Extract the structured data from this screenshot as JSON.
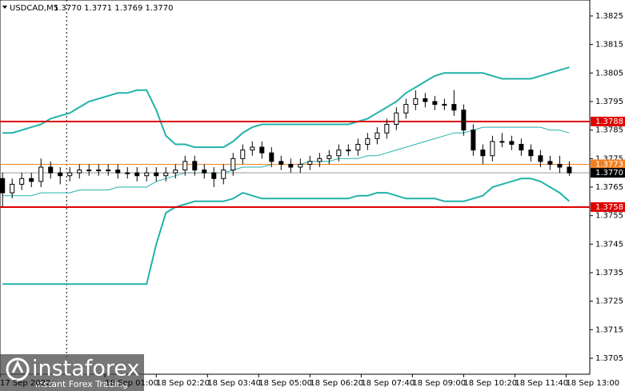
{
  "chart_data": {
    "type": "candlestick",
    "title": "USDCAD,M5",
    "ohlc_text": "1.3770 1.3771 1.3769 1.3770",
    "x": [
      "17 Sep 22:20",
      "17 Sep 22:35",
      "17 Sep 22:50",
      "17 Sep 23:05",
      "17 Sep 23:20",
      "17 Sep 23:35",
      "17 Sep 23:50",
      "18 Sep 00:05",
      "18 Sep 00:20",
      "18 Sep 00:35",
      "18 Sep 00:50",
      "18 Sep 01:05",
      "18 Sep 01:20",
      "18 Sep 01:35",
      "18 Sep 01:50",
      "18 Sep 02:05",
      "18 Sep 02:20",
      "18 Sep 02:35",
      "18 Sep 02:50",
      "18 Sep 03:05",
      "18 Sep 03:20",
      "18 Sep 03:35",
      "18 Sep 03:50",
      "18 Sep 04:05",
      "18 Sep 04:20",
      "18 Sep 04:35",
      "18 Sep 04:50",
      "18 Sep 05:05",
      "18 Sep 05:20",
      "18 Sep 05:35",
      "18 Sep 05:50",
      "18 Sep 06:05",
      "18 Sep 06:20",
      "18 Sep 06:35",
      "18 Sep 06:50",
      "18 Sep 07:05",
      "18 Sep 07:20",
      "18 Sep 07:35",
      "18 Sep 07:50",
      "18 Sep 08:05",
      "18 Sep 08:20",
      "18 Sep 08:35",
      "18 Sep 08:50",
      "18 Sep 09:05",
      "18 Sep 09:20",
      "18 Sep 09:35",
      "18 Sep 09:50",
      "18 Sep 10:05",
      "18 Sep 10:20",
      "18 Sep 10:35",
      "18 Sep 10:50",
      "18 Sep 11:05",
      "18 Sep 11:20",
      "18 Sep 11:35",
      "18 Sep 11:50",
      "18 Sep 12:05",
      "18 Sep 12:20",
      "18 Sep 12:35",
      "18 Sep 12:50",
      "18 Sep 13:05"
    ],
    "open": [
      1.3768,
      1.3763,
      1.3766,
      1.3768,
      1.3767,
      1.3772,
      1.377,
      1.3769,
      1.377,
      1.3771,
      1.3771,
      1.3771,
      1.3771,
      1.377,
      1.377,
      1.3769,
      1.377,
      1.3769,
      1.377,
      1.3771,
      1.3774,
      1.3771,
      1.377,
      1.3768,
      1.3771,
      1.3775,
      1.3778,
      1.3779,
      1.3777,
      1.3774,
      1.3773,
      1.3772,
      1.3773,
      1.3774,
      1.3775,
      1.3776,
      1.3778,
      1.3778,
      1.378,
      1.3782,
      1.3784,
      1.3787,
      1.3791,
      1.3794,
      1.3796,
      1.3795,
      1.3794,
      1.3794,
      1.3792,
      1.3785,
      1.3778,
      1.3776,
      1.3781,
      1.3781,
      1.378,
      1.3778,
      1.3776,
      1.3774,
      1.3773,
      1.3772
    ],
    "high": [
      1.377,
      1.3768,
      1.377,
      1.377,
      1.3775,
      1.3774,
      1.3772,
      1.3772,
      1.3773,
      1.3773,
      1.3773,
      1.3773,
      1.3773,
      1.3772,
      1.3772,
      1.3772,
      1.3772,
      1.3772,
      1.3773,
      1.3776,
      1.3776,
      1.3773,
      1.3772,
      1.3773,
      1.3777,
      1.378,
      1.3781,
      1.3781,
      1.3779,
      1.3776,
      1.3775,
      1.3775,
      1.3776,
      1.3777,
      1.3778,
      1.378,
      1.378,
      1.3782,
      1.3784,
      1.3786,
      1.3789,
      1.3793,
      1.3796,
      1.3799,
      1.3798,
      1.3797,
      1.3796,
      1.3799,
      1.3794,
      1.3787,
      1.378,
      1.3783,
      1.3784,
      1.3783,
      1.3782,
      1.378,
      1.3778,
      1.3776,
      1.3776,
      1.3774
    ],
    "low": [
      1.3758,
      1.3761,
      1.3764,
      1.3765,
      1.3765,
      1.3768,
      1.3766,
      1.3767,
      1.3768,
      1.3769,
      1.3769,
      1.3769,
      1.3768,
      1.3768,
      1.3767,
      1.3767,
      1.3767,
      1.3767,
      1.3768,
      1.3769,
      1.3769,
      1.3768,
      1.3765,
      1.3766,
      1.3769,
      1.3773,
      1.3776,
      1.3775,
      1.3772,
      1.3771,
      1.377,
      1.377,
      1.3771,
      1.3772,
      1.3773,
      1.3774,
      1.3776,
      1.3776,
      1.3778,
      1.378,
      1.3782,
      1.3785,
      1.3789,
      1.3792,
      1.3793,
      1.3792,
      1.3792,
      1.379,
      1.3783,
      1.3776,
      1.3773,
      1.3774,
      1.3779,
      1.3778,
      1.3776,
      1.3774,
      1.3772,
      1.3771,
      1.377,
      1.3769
    ],
    "close": [
      1.3763,
      1.3766,
      1.3768,
      1.3767,
      1.3772,
      1.377,
      1.3769,
      1.377,
      1.3771,
      1.3771,
      1.3771,
      1.3771,
      1.377,
      1.377,
      1.3769,
      1.377,
      1.3769,
      1.377,
      1.3771,
      1.3774,
      1.3771,
      1.377,
      1.3768,
      1.3771,
      1.3775,
      1.3778,
      1.3779,
      1.3777,
      1.3774,
      1.3773,
      1.3772,
      1.3773,
      1.3774,
      1.3775,
      1.3776,
      1.3778,
      1.3778,
      1.378,
      1.3782,
      1.3784,
      1.3787,
      1.3791,
      1.3794,
      1.3796,
      1.3795,
      1.3794,
      1.3794,
      1.3792,
      1.3785,
      1.3778,
      1.3776,
      1.3781,
      1.3781,
      1.378,
      1.3778,
      1.3776,
      1.3774,
      1.3773,
      1.3772,
      1.377
    ],
    "candle_color": "#000000",
    "bands": [
      {
        "color": "#20b2aa",
        "line_width": 2,
        "values": [
          1.3784,
          1.3784,
          1.3785,
          1.3786,
          1.3787,
          1.3789,
          1.379,
          1.3791,
          1.3793,
          1.3795,
          1.3796,
          1.3797,
          1.3798,
          1.3798,
          1.3799,
          1.3799,
          1.3792,
          1.3783,
          1.378,
          1.378,
          1.3779,
          1.3779,
          1.3779,
          1.3779,
          1.3781,
          1.3784,
          1.3786,
          1.3787,
          1.3787,
          1.3787,
          1.3787,
          1.3787,
          1.3787,
          1.3787,
          1.3787,
          1.3787,
          1.3787,
          1.3788,
          1.3789,
          1.3791,
          1.3793,
          1.3795,
          1.3798,
          1.38,
          1.3802,
          1.3804,
          1.3805,
          1.3805,
          1.3805,
          1.3805,
          1.3805,
          1.3804,
          1.3803,
          1.3803,
          1.3803,
          1.3803,
          1.3804,
          1.3805,
          1.3806,
          1.3807
        ]
      },
      {
        "color": "#20b2aa",
        "line_width": 1,
        "values": [
          1.3762,
          1.3762,
          1.3762,
          1.3762,
          1.3763,
          1.3763,
          1.3763,
          1.3763,
          1.3764,
          1.3764,
          1.3764,
          1.3764,
          1.3765,
          1.3765,
          1.3765,
          1.3765,
          1.3767,
          1.3768,
          1.3769,
          1.377,
          1.377,
          1.377,
          1.377,
          1.377,
          1.3771,
          1.3772,
          1.3772,
          1.3772,
          1.3773,
          1.3773,
          1.3773,
          1.3773,
          1.3774,
          1.3774,
          1.3774,
          1.3775,
          1.3775,
          1.3775,
          1.3776,
          1.3776,
          1.3777,
          1.3778,
          1.3779,
          1.378,
          1.3781,
          1.3782,
          1.3783,
          1.3784,
          1.3784,
          1.3785,
          1.3786,
          1.3786,
          1.3786,
          1.3786,
          1.3786,
          1.3786,
          1.3786,
          1.3785,
          1.3785,
          1.3784
        ]
      },
      {
        "color": "#20b2aa",
        "line_width": 2,
        "values": [
          1.3731,
          1.3731,
          1.3731,
          1.3731,
          1.3731,
          1.3731,
          1.3731,
          1.3731,
          1.3731,
          1.3731,
          1.3731,
          1.3731,
          1.3731,
          1.3731,
          1.3731,
          1.3731,
          1.3745,
          1.3756,
          1.3758,
          1.3759,
          1.376,
          1.376,
          1.376,
          1.376,
          1.3761,
          1.3763,
          1.3762,
          1.3761,
          1.3761,
          1.3761,
          1.3761,
          1.3761,
          1.3761,
          1.3761,
          1.3761,
          1.3761,
          1.3761,
          1.3762,
          1.3762,
          1.3763,
          1.3763,
          1.3762,
          1.3761,
          1.3761,
          1.3761,
          1.3761,
          1.376,
          1.376,
          1.376,
          1.3761,
          1.3762,
          1.3765,
          1.3766,
          1.3767,
          1.3768,
          1.3768,
          1.3767,
          1.3765,
          1.3763,
          1.376
        ]
      }
    ],
    "levels": [
      {
        "value": 1.3788,
        "color": "#e00000"
      },
      {
        "value": 1.3758,
        "color": "#e00000"
      },
      {
        "value": 1.3773,
        "color": "#f08020"
      },
      {
        "value": {
          "value": 1.377,
          "label": "1.3770"
        },
        "color": "#000000"
      }
    ],
    "separator": "18 Sep 00:00",
    "xlim": [
      "17 Sep 22:16",
      "18 Sep 13:37"
    ],
    "xticks": [
      {
        "value": "17 Sep 22:16",
        "label": "17 Sep 2022"
      },
      "18 Sep 01:00",
      "18 Sep 02:20",
      "18 Sep 03:40",
      "18 Sep 05:00",
      "18 Sep 06:20",
      "18 Sep 07:40",
      "18 Sep 09:00",
      "18 Sep 10:20",
      "18 Sep 11:40",
      "18 Sep 13:00"
    ],
    "ylim": [
      1.36994,
      1.38306
    ],
    "yticks": [
      1.3825,
      1.3815,
      1.3805,
      1.3795,
      1.3785,
      1.3775,
      1.3765,
      1.3755,
      1.3745,
      1.3735,
      1.3725,
      1.3715,
      1.3705
    ],
    "grid": false,
    "watermark": {
      "brand": "instaforex",
      "tagline": "Instant Forex Trading"
    }
  }
}
